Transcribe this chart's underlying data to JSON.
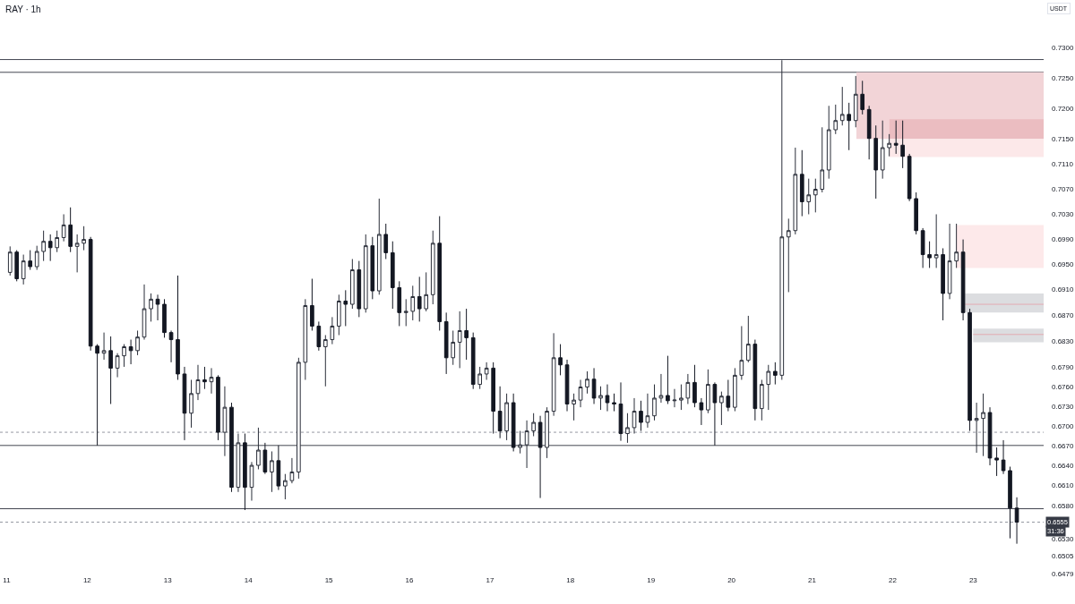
{
  "chart_data": {
    "type": "candlestick",
    "title": "RAY · 1h",
    "ylabel": "USDT",
    "log": true,
    "x": [
      11.042,
      11.125,
      11.208,
      11.292,
      11.375,
      11.458,
      11.542,
      11.625,
      11.708,
      11.792,
      11.875,
      11.958,
      12.042,
      12.125,
      12.208,
      12.292,
      12.375,
      12.458,
      12.542,
      12.625,
      12.708,
      12.792,
      12.875,
      12.958,
      13.042,
      13.125,
      13.208,
      13.292,
      13.375,
      13.458,
      13.542,
      13.625,
      13.708,
      13.792,
      13.875,
      13.958,
      14.042,
      14.125,
      14.208,
      14.292,
      14.375,
      14.458,
      14.542,
      14.625,
      14.708,
      14.792,
      14.875,
      14.958,
      15.042,
      15.125,
      15.208,
      15.292,
      15.375,
      15.458,
      15.542,
      15.625,
      15.708,
      15.792,
      15.875,
      15.958,
      16.042,
      16.125,
      16.208,
      16.292,
      16.375,
      16.458,
      16.542,
      16.625,
      16.708,
      16.792,
      16.875,
      16.958,
      17.042,
      17.125,
      17.208,
      17.292,
      17.375,
      17.458,
      17.542,
      17.625,
      17.708,
      17.792,
      17.875,
      17.958,
      18.042,
      18.125,
      18.208,
      18.292,
      18.375,
      18.458,
      18.542,
      18.625,
      18.708,
      18.792,
      18.875,
      18.958,
      19.042,
      19.125,
      19.208,
      19.292,
      19.375,
      19.458,
      19.542,
      19.625,
      19.708,
      19.792,
      19.875,
      19.958,
      20.042,
      20.125,
      20.208,
      20.292,
      20.375,
      20.458,
      20.542,
      20.625,
      20.708,
      20.792,
      20.875,
      20.958,
      21.042,
      21.125,
      21.208,
      21.292,
      21.375,
      21.458,
      21.542,
      21.625,
      21.708,
      21.792,
      21.875,
      21.958,
      22.042,
      22.125,
      22.208,
      22.292,
      22.375,
      22.458,
      22.542,
      22.625,
      22.708,
      22.792,
      22.875,
      22.958,
      23.042,
      23.125,
      23.208,
      23.292,
      23.375,
      23.458,
      23.542
    ],
    "ohlc": [
      [
        0.6937,
        0.6978,
        0.6932,
        0.6969
      ],
      [
        0.6969,
        0.6972,
        0.6923,
        0.6927
      ],
      [
        0.6927,
        0.6965,
        0.6918,
        0.6955
      ],
      [
        0.6955,
        0.6972,
        0.6941,
        0.6946
      ],
      [
        0.6946,
        0.6979,
        0.6941,
        0.697
      ],
      [
        0.697,
        0.7003,
        0.6955,
        0.6986
      ],
      [
        0.6986,
        0.6997,
        0.6955,
        0.6976
      ],
      [
        0.6976,
        0.7003,
        0.6969,
        0.6992
      ],
      [
        0.6992,
        0.7029,
        0.6986,
        0.7012
      ],
      [
        0.7012,
        0.704,
        0.6969,
        0.6978
      ],
      [
        0.6978,
        0.6997,
        0.6937,
        0.6983
      ],
      [
        0.6983,
        0.701,
        0.6972,
        0.6989
      ],
      [
        0.6989,
        0.6993,
        0.6815,
        0.6822
      ],
      [
        0.6822,
        0.6825,
        0.667,
        0.6811
      ],
      [
        0.6811,
        0.6843,
        0.6801,
        0.6815
      ],
      [
        0.6815,
        0.6837,
        0.6733,
        0.6788
      ],
      [
        0.6788,
        0.6811,
        0.6774,
        0.6807
      ],
      [
        0.6807,
        0.6825,
        0.679,
        0.6821
      ],
      [
        0.6821,
        0.6832,
        0.6794,
        0.6815
      ],
      [
        0.6815,
        0.6846,
        0.6808,
        0.6836
      ],
      [
        0.6836,
        0.6918,
        0.6832,
        0.688
      ],
      [
        0.688,
        0.6904,
        0.686,
        0.6895
      ],
      [
        0.6895,
        0.6902,
        0.6862,
        0.6887
      ],
      [
        0.6887,
        0.6895,
        0.6835,
        0.6843
      ],
      [
        0.6843,
        0.6846,
        0.6797,
        0.6832
      ],
      [
        0.6832,
        0.6932,
        0.677,
        0.6779
      ],
      [
        0.6779,
        0.679,
        0.6678,
        0.6719
      ],
      [
        0.6719,
        0.677,
        0.6697,
        0.6749
      ],
      [
        0.6749,
        0.6793,
        0.6739,
        0.677
      ],
      [
        0.677,
        0.679,
        0.6756,
        0.6767
      ],
      [
        0.6767,
        0.6788,
        0.6749,
        0.6774
      ],
      [
        0.6774,
        0.6777,
        0.6678,
        0.669
      ],
      [
        0.669,
        0.676,
        0.6654,
        0.6728
      ],
      [
        0.6728,
        0.6735,
        0.66,
        0.6607
      ],
      [
        0.6607,
        0.6688,
        0.66,
        0.6674
      ],
      [
        0.6674,
        0.6688,
        0.6573,
        0.6607
      ],
      [
        0.6607,
        0.6645,
        0.6587,
        0.664
      ],
      [
        0.664,
        0.6697,
        0.6634,
        0.6663
      ],
      [
        0.6663,
        0.6674,
        0.6627,
        0.663
      ],
      [
        0.663,
        0.6661,
        0.66,
        0.6647
      ],
      [
        0.6647,
        0.667,
        0.6603,
        0.6609
      ],
      [
        0.6609,
        0.6627,
        0.6589,
        0.6617
      ],
      [
        0.6617,
        0.6651,
        0.6613,
        0.663
      ],
      [
        0.663,
        0.6804,
        0.662,
        0.6797
      ],
      [
        0.6797,
        0.6895,
        0.677,
        0.6885
      ],
      [
        0.6885,
        0.6927,
        0.6846,
        0.6853
      ],
      [
        0.6853,
        0.686,
        0.6815,
        0.6821
      ],
      [
        0.6821,
        0.6839,
        0.676,
        0.6832
      ],
      [
        0.6832,
        0.6867,
        0.6825,
        0.6853
      ],
      [
        0.6853,
        0.6902,
        0.6839,
        0.6892
      ],
      [
        0.6892,
        0.6909,
        0.6853,
        0.6887
      ],
      [
        0.6887,
        0.6958,
        0.688,
        0.6941
      ],
      [
        0.6941,
        0.6955,
        0.6867,
        0.688
      ],
      [
        0.688,
        0.6997,
        0.6874,
        0.6979
      ],
      [
        0.6979,
        0.6993,
        0.6895,
        0.6908
      ],
      [
        0.6908,
        0.7054,
        0.6902,
        0.6997
      ],
      [
        0.6997,
        0.7014,
        0.6958,
        0.6968
      ],
      [
        0.6968,
        0.6986,
        0.688,
        0.6913
      ],
      [
        0.6913,
        0.6923,
        0.6853,
        0.6874
      ],
      [
        0.6874,
        0.6895,
        0.6853,
        0.6876
      ],
      [
        0.6876,
        0.6916,
        0.6862,
        0.6899
      ],
      [
        0.6899,
        0.693,
        0.686,
        0.688
      ],
      [
        0.688,
        0.6937,
        0.6876,
        0.6902
      ],
      [
        0.6902,
        0.7003,
        0.6887,
        0.6983
      ],
      [
        0.6983,
        0.7026,
        0.6846,
        0.686
      ],
      [
        0.686,
        0.6874,
        0.6779,
        0.6804
      ],
      [
        0.6804,
        0.6846,
        0.6793,
        0.6828
      ],
      [
        0.6828,
        0.6876,
        0.6788,
        0.6846
      ],
      [
        0.6846,
        0.688,
        0.6801,
        0.6835
      ],
      [
        0.6835,
        0.6843,
        0.6756,
        0.6763
      ],
      [
        0.6763,
        0.679,
        0.6756,
        0.6779
      ],
      [
        0.6779,
        0.6797,
        0.677,
        0.6788
      ],
      [
        0.6788,
        0.6797,
        0.6688,
        0.6722
      ],
      [
        0.6722,
        0.676,
        0.6681,
        0.6692
      ],
      [
        0.6692,
        0.6749,
        0.6678,
        0.6735
      ],
      [
        0.6735,
        0.6749,
        0.6661,
        0.6667
      ],
      [
        0.6667,
        0.6692,
        0.6658,
        0.6671
      ],
      [
        0.6671,
        0.6708,
        0.6636,
        0.6692
      ],
      [
        0.6692,
        0.6719,
        0.6684,
        0.6705
      ],
      [
        0.6705,
        0.6715,
        0.6591,
        0.6667
      ],
      [
        0.6667,
        0.6728,
        0.6651,
        0.6722
      ],
      [
        0.6722,
        0.6842,
        0.6715,
        0.6804
      ],
      [
        0.6804,
        0.6825,
        0.6777,
        0.6793
      ],
      [
        0.6793,
        0.6801,
        0.6722,
        0.6733
      ],
      [
        0.6733,
        0.6749,
        0.6708,
        0.6739
      ],
      [
        0.6739,
        0.677,
        0.6728,
        0.6759
      ],
      [
        0.6759,
        0.6783,
        0.6749,
        0.6771
      ],
      [
        0.6771,
        0.6788,
        0.6733,
        0.6742
      ],
      [
        0.6742,
        0.676,
        0.6724,
        0.6746
      ],
      [
        0.6746,
        0.6763,
        0.6722,
        0.6735
      ],
      [
        0.6735,
        0.6749,
        0.6722,
        0.6733
      ],
      [
        0.6733,
        0.6766,
        0.6677,
        0.6688
      ],
      [
        0.6688,
        0.6719,
        0.6674,
        0.6697
      ],
      [
        0.6697,
        0.6742,
        0.6688,
        0.6722
      ],
      [
        0.6722,
        0.6738,
        0.6692,
        0.6705
      ],
      [
        0.6705,
        0.6749,
        0.6697,
        0.6715
      ],
      [
        0.6715,
        0.6763,
        0.6708,
        0.6742
      ],
      [
        0.6742,
        0.6779,
        0.6735,
        0.6746
      ],
      [
        0.6746,
        0.6807,
        0.6733,
        0.6738
      ],
      [
        0.6738,
        0.6756,
        0.6728,
        0.6739
      ],
      [
        0.6739,
        0.6763,
        0.6724,
        0.6742
      ],
      [
        0.6742,
        0.6779,
        0.6733,
        0.6766
      ],
      [
        0.6766,
        0.6793,
        0.6728,
        0.6735
      ],
      [
        0.6735,
        0.6742,
        0.6701,
        0.6724
      ],
      [
        0.6724,
        0.6786,
        0.6719,
        0.6763
      ],
      [
        0.6763,
        0.6766,
        0.667,
        0.6735
      ],
      [
        0.6735,
        0.6752,
        0.6701,
        0.6745
      ],
      [
        0.6745,
        0.677,
        0.6722,
        0.6728
      ],
      [
        0.6728,
        0.6788,
        0.6722,
        0.6777
      ],
      [
        0.6777,
        0.6853,
        0.677,
        0.68
      ],
      [
        0.68,
        0.6869,
        0.6797,
        0.6825
      ],
      [
        0.6825,
        0.6832,
        0.6708,
        0.6726
      ],
      [
        0.6726,
        0.677,
        0.6708,
        0.6763
      ],
      [
        0.6763,
        0.6793,
        0.6724,
        0.6783
      ],
      [
        0.6783,
        0.6797,
        0.6763,
        0.6777
      ],
      [
        0.6777,
        0.7279,
        0.677,
        0.6993
      ],
      [
        0.6993,
        0.7022,
        0.6906,
        0.7003
      ],
      [
        0.7003,
        0.7136,
        0.6997,
        0.7093
      ],
      [
        0.7093,
        0.7132,
        0.7026,
        0.7049
      ],
      [
        0.7049,
        0.7086,
        0.7029,
        0.706
      ],
      [
        0.706,
        0.7086,
        0.7032,
        0.7069
      ],
      [
        0.7069,
        0.7169,
        0.7064,
        0.71
      ],
      [
        0.71,
        0.7204,
        0.7086,
        0.7165
      ],
      [
        0.7165,
        0.7206,
        0.7158,
        0.718
      ],
      [
        0.718,
        0.7235,
        0.7172,
        0.719
      ],
      [
        0.719,
        0.7209,
        0.7132,
        0.718
      ],
      [
        0.718,
        0.7253,
        0.7169,
        0.7223
      ],
      [
        0.7223,
        0.7245,
        0.719,
        0.7198
      ],
      [
        0.7198,
        0.7204,
        0.7117,
        0.7151
      ],
      [
        0.7151,
        0.7172,
        0.7054,
        0.71
      ],
      [
        0.71,
        0.718,
        0.7086,
        0.7136
      ],
      [
        0.7136,
        0.7158,
        0.7122,
        0.7143
      ],
      [
        0.7143,
        0.718,
        0.7126,
        0.714
      ],
      [
        0.714,
        0.718,
        0.7103,
        0.7122
      ],
      [
        0.7122,
        0.7126,
        0.705,
        0.7054
      ],
      [
        0.7054,
        0.7064,
        0.6997,
        0.7003
      ],
      [
        0.7003,
        0.7007,
        0.6944,
        0.6965
      ],
      [
        0.6965,
        0.6986,
        0.6944,
        0.696
      ],
      [
        0.696,
        0.7029,
        0.6944,
        0.6965
      ],
      [
        0.6965,
        0.6975,
        0.6862,
        0.6904
      ],
      [
        0.6904,
        0.7014,
        0.6895,
        0.6955
      ],
      [
        0.6955,
        0.7014,
        0.6944,
        0.6969
      ],
      [
        0.6969,
        0.6989,
        0.6862,
        0.6874
      ],
      [
        0.6874,
        0.688,
        0.6692,
        0.6708
      ],
      [
        0.6708,
        0.6735,
        0.6659,
        0.6711
      ],
      [
        0.6711,
        0.6749,
        0.6654,
        0.672
      ],
      [
        0.672,
        0.6728,
        0.664,
        0.6651
      ],
      [
        0.6651,
        0.6667,
        0.6624,
        0.6648
      ],
      [
        0.6648,
        0.6678,
        0.6627,
        0.6632
      ],
      [
        0.6632,
        0.6638,
        0.6531,
        0.6576
      ],
      [
        0.6576,
        0.6592,
        0.6523,
        0.6555
      ]
    ],
    "series": [
      {
        "type": "line",
        "x": [
          21.55,
          23.875
        ],
        "values": [
          null,
          null
        ],
        "lower": [
          0.715,
          0.715
        ],
        "upper": [
          0.7259,
          0.7259
        ],
        "color": "#f2d4d7"
      },
      {
        "type": "line",
        "x": [
          21.96,
          23.875
        ],
        "values": [
          null,
          null
        ],
        "lower": [
          0.715,
          0.715
        ],
        "upper": [
          0.7182,
          0.7182
        ],
        "color": "#ebbdc1"
      },
      {
        "type": "line",
        "x": [
          21.96,
          23.875
        ],
        "values": [
          null,
          null
        ],
        "lower": [
          0.7121,
          0.7121
        ],
        "upper": [
          0.715,
          0.715
        ],
        "color": "#fce8e9"
      },
      {
        "type": "line",
        "x": [
          22.79,
          23.875
        ],
        "values": [
          null,
          null
        ],
        "lower": [
          0.6944,
          0.6944
        ],
        "upper": [
          0.7012,
          0.7012
        ],
        "color": "#fde9ea"
      },
      {
        "type": "line",
        "x": [
          22.9,
          23.875
        ],
        "values": [
          null,
          null
        ],
        "lower": [
          0.6874,
          0.6874
        ],
        "upper": [
          0.6904,
          0.6904
        ],
        "color": "#dcdde0"
      },
      {
        "type": "line",
        "x": [
          23.0,
          23.875
        ],
        "values": [
          null,
          null
        ],
        "lower": [
          0.6828,
          0.6828
        ],
        "upper": [
          0.6849,
          0.6849
        ],
        "color": "#dcdde0"
      },
      {
        "type": "line",
        "x": [
          22.9,
          23.875
        ],
        "values": [
          0.6887,
          0.6887
        ],
        "color": "#e3aab2"
      },
      {
        "type": "line",
        "x": [
          23.0,
          23.875
        ],
        "values": [
          0.684,
          0.684
        ],
        "color": "#e3aab2"
      }
    ],
    "xlim": [
      10.917,
      23.875
    ],
    "xticks": [
      11,
      12,
      13,
      14,
      15,
      16,
      17,
      18,
      19,
      20,
      21,
      22,
      23
    ],
    "ylim": [
      0.6479,
      0.7379
    ],
    "yticks": [
      {
        "value": 0.73,
        "label": "0.7300"
      },
      {
        "value": 0.725,
        "label": "0.7250"
      },
      {
        "value": 0.72,
        "label": "0.7200"
      },
      {
        "value": 0.715,
        "label": "0.7150"
      },
      {
        "value": 0.711,
        "label": "0.7110"
      },
      {
        "value": 0.707,
        "label": "0.7070"
      },
      {
        "value": 0.703,
        "label": "0.7030"
      },
      {
        "value": 0.699,
        "label": "0.6990"
      },
      {
        "value": 0.695,
        "label": "0.6950"
      },
      {
        "value": 0.691,
        "label": "0.6910"
      },
      {
        "value": 0.687,
        "label": "0.6870"
      },
      {
        "value": 0.683,
        "label": "0.6830"
      },
      {
        "value": 0.679,
        "label": "0.6790"
      },
      {
        "value": 0.676,
        "label": "0.6760"
      },
      {
        "value": 0.673,
        "label": "0.6730"
      },
      {
        "value": 0.67,
        "label": "0.6700"
      },
      {
        "value": 0.667,
        "label": "0.6670"
      },
      {
        "value": 0.664,
        "label": "0.6640"
      },
      {
        "value": 0.661,
        "label": "0.6610"
      },
      {
        "value": 0.658,
        "label": "0.6580"
      },
      {
        "value": 0.653,
        "label": "0.6530"
      },
      {
        "value": 0.6505,
        "label": "0.6505"
      },
      {
        "value": 0.6479,
        "label": "0.6479"
      }
    ],
    "ref_lines": [
      {
        "axis": "y",
        "value": 0.728,
        "color": "#434651"
      },
      {
        "axis": "y",
        "value": 0.7259,
        "color": "#434651"
      },
      {
        "axis": "y",
        "value": 0.667,
        "color": "#434651"
      },
      {
        "axis": "y",
        "value": 0.6575,
        "color": "#434651"
      },
      {
        "axis": "y",
        "value": 0.669,
        "color": "#9598a1",
        "line_style": "dotted"
      },
      {
        "axis": "y",
        "value": 0.6555,
        "color": "#9598a1",
        "line_style": "dotted",
        "label": "0.6555"
      }
    ],
    "annotations": [
      "31:36"
    ]
  }
}
